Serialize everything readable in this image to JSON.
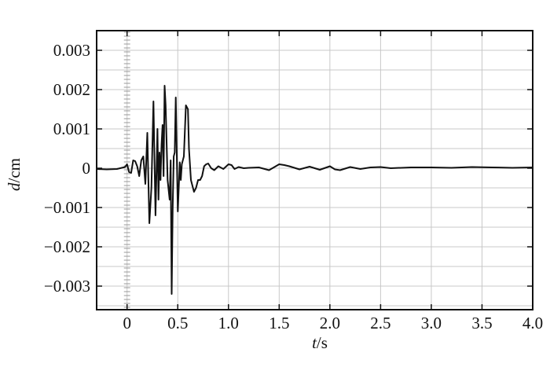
{
  "chart_data": {
    "type": "line",
    "xlabel_italic": "t",
    "xlabel_unit": "/s",
    "ylabel_italic": "d",
    "ylabel_unit": "/cm",
    "xlim": [
      -0.3,
      4.0
    ],
    "ylim": [
      -0.0036,
      0.0035
    ],
    "x_ticks": [
      0,
      0.5,
      1.0,
      1.5,
      2.0,
      2.5,
      3.0,
      3.5,
      4.0
    ],
    "x_tick_labels": [
      "0",
      "0.5",
      "1.0",
      "1.5",
      "2.0",
      "2.5",
      "3.0",
      "3.5",
      "4.0"
    ],
    "y_ticks": [
      0.003,
      0.002,
      0.001,
      0,
      -0.001,
      -0.002,
      -0.003
    ],
    "y_tick_labels": [
      "0.003",
      "0.002",
      "0.001",
      "0",
      "−0.001",
      "−0.002",
      "−0.003"
    ],
    "grid": true,
    "series": [
      {
        "x": [
          -0.3,
          -0.2,
          -0.1,
          -0.02,
          0.0,
          0.02,
          0.04,
          0.06,
          0.08,
          0.1,
          0.12,
          0.14,
          0.16,
          0.18,
          0.2,
          0.22,
          0.24,
          0.26,
          0.28,
          0.3,
          0.31,
          0.32,
          0.33,
          0.34,
          0.35,
          0.36,
          0.37,
          0.38,
          0.4,
          0.42,
          0.43,
          0.44,
          0.45,
          0.46,
          0.47,
          0.48,
          0.5,
          0.52,
          0.53,
          0.54,
          0.56,
          0.58,
          0.6,
          0.61,
          0.63,
          0.64,
          0.66,
          0.68,
          0.7,
          0.72,
          0.74,
          0.76,
          0.78,
          0.8,
          0.83,
          0.86,
          0.9,
          0.95,
          1.0,
          1.03,
          1.06,
          1.1,
          1.15,
          1.2,
          1.3,
          1.4,
          1.5,
          1.55,
          1.6,
          1.7,
          1.8,
          1.9,
          2.0,
          2.05,
          2.1,
          2.2,
          2.3,
          2.4,
          2.5,
          2.6,
          2.8,
          3.0,
          3.2,
          3.4,
          3.6,
          3.8,
          4.0
        ],
        "y": [
          -2e-05,
          -3e-05,
          -2e-05,
          3e-05,
          0.0001,
          -0.0001,
          -0.00012,
          0.0002,
          0.00018,
          5e-05,
          -0.0002,
          0.0002,
          0.0003,
          -0.0004,
          0.0009,
          -0.0014,
          -0.0005,
          0.0017,
          -0.0012,
          0.001,
          -0.0008,
          0.0004,
          -0.0003,
          0.0006,
          0.0011,
          -0.0002,
          0.0021,
          0.0016,
          -0.0003,
          -0.0008,
          0.0002,
          -0.0032,
          -0.001,
          0.0003,
          0.0004,
          0.0018,
          -0.0011,
          0.00015,
          -0.0003,
          0.0001,
          0.0003,
          0.0016,
          0.0015,
          0.0005,
          -0.0003,
          -0.0004,
          -0.0006,
          -0.0005,
          -0.0003,
          -0.0003,
          -0.0002,
          5e-05,
          0.0001,
          0.00012,
          0.0,
          -5e-05,
          5e-05,
          -2e-05,
          0.0001,
          8e-05,
          -2e-05,
          3e-05,
          0.0,
          1e-05,
          2e-05,
          -5e-05,
          0.0001,
          8e-05,
          5e-05,
          -3e-05,
          4e-05,
          -4e-05,
          5e-05,
          -3e-05,
          -5e-05,
          3e-05,
          -2e-05,
          2e-05,
          3e-05,
          0.0,
          2e-05,
          2e-05,
          1e-05,
          3e-05,
          2e-05,
          1e-05,
          2e-05
        ]
      }
    ]
  }
}
